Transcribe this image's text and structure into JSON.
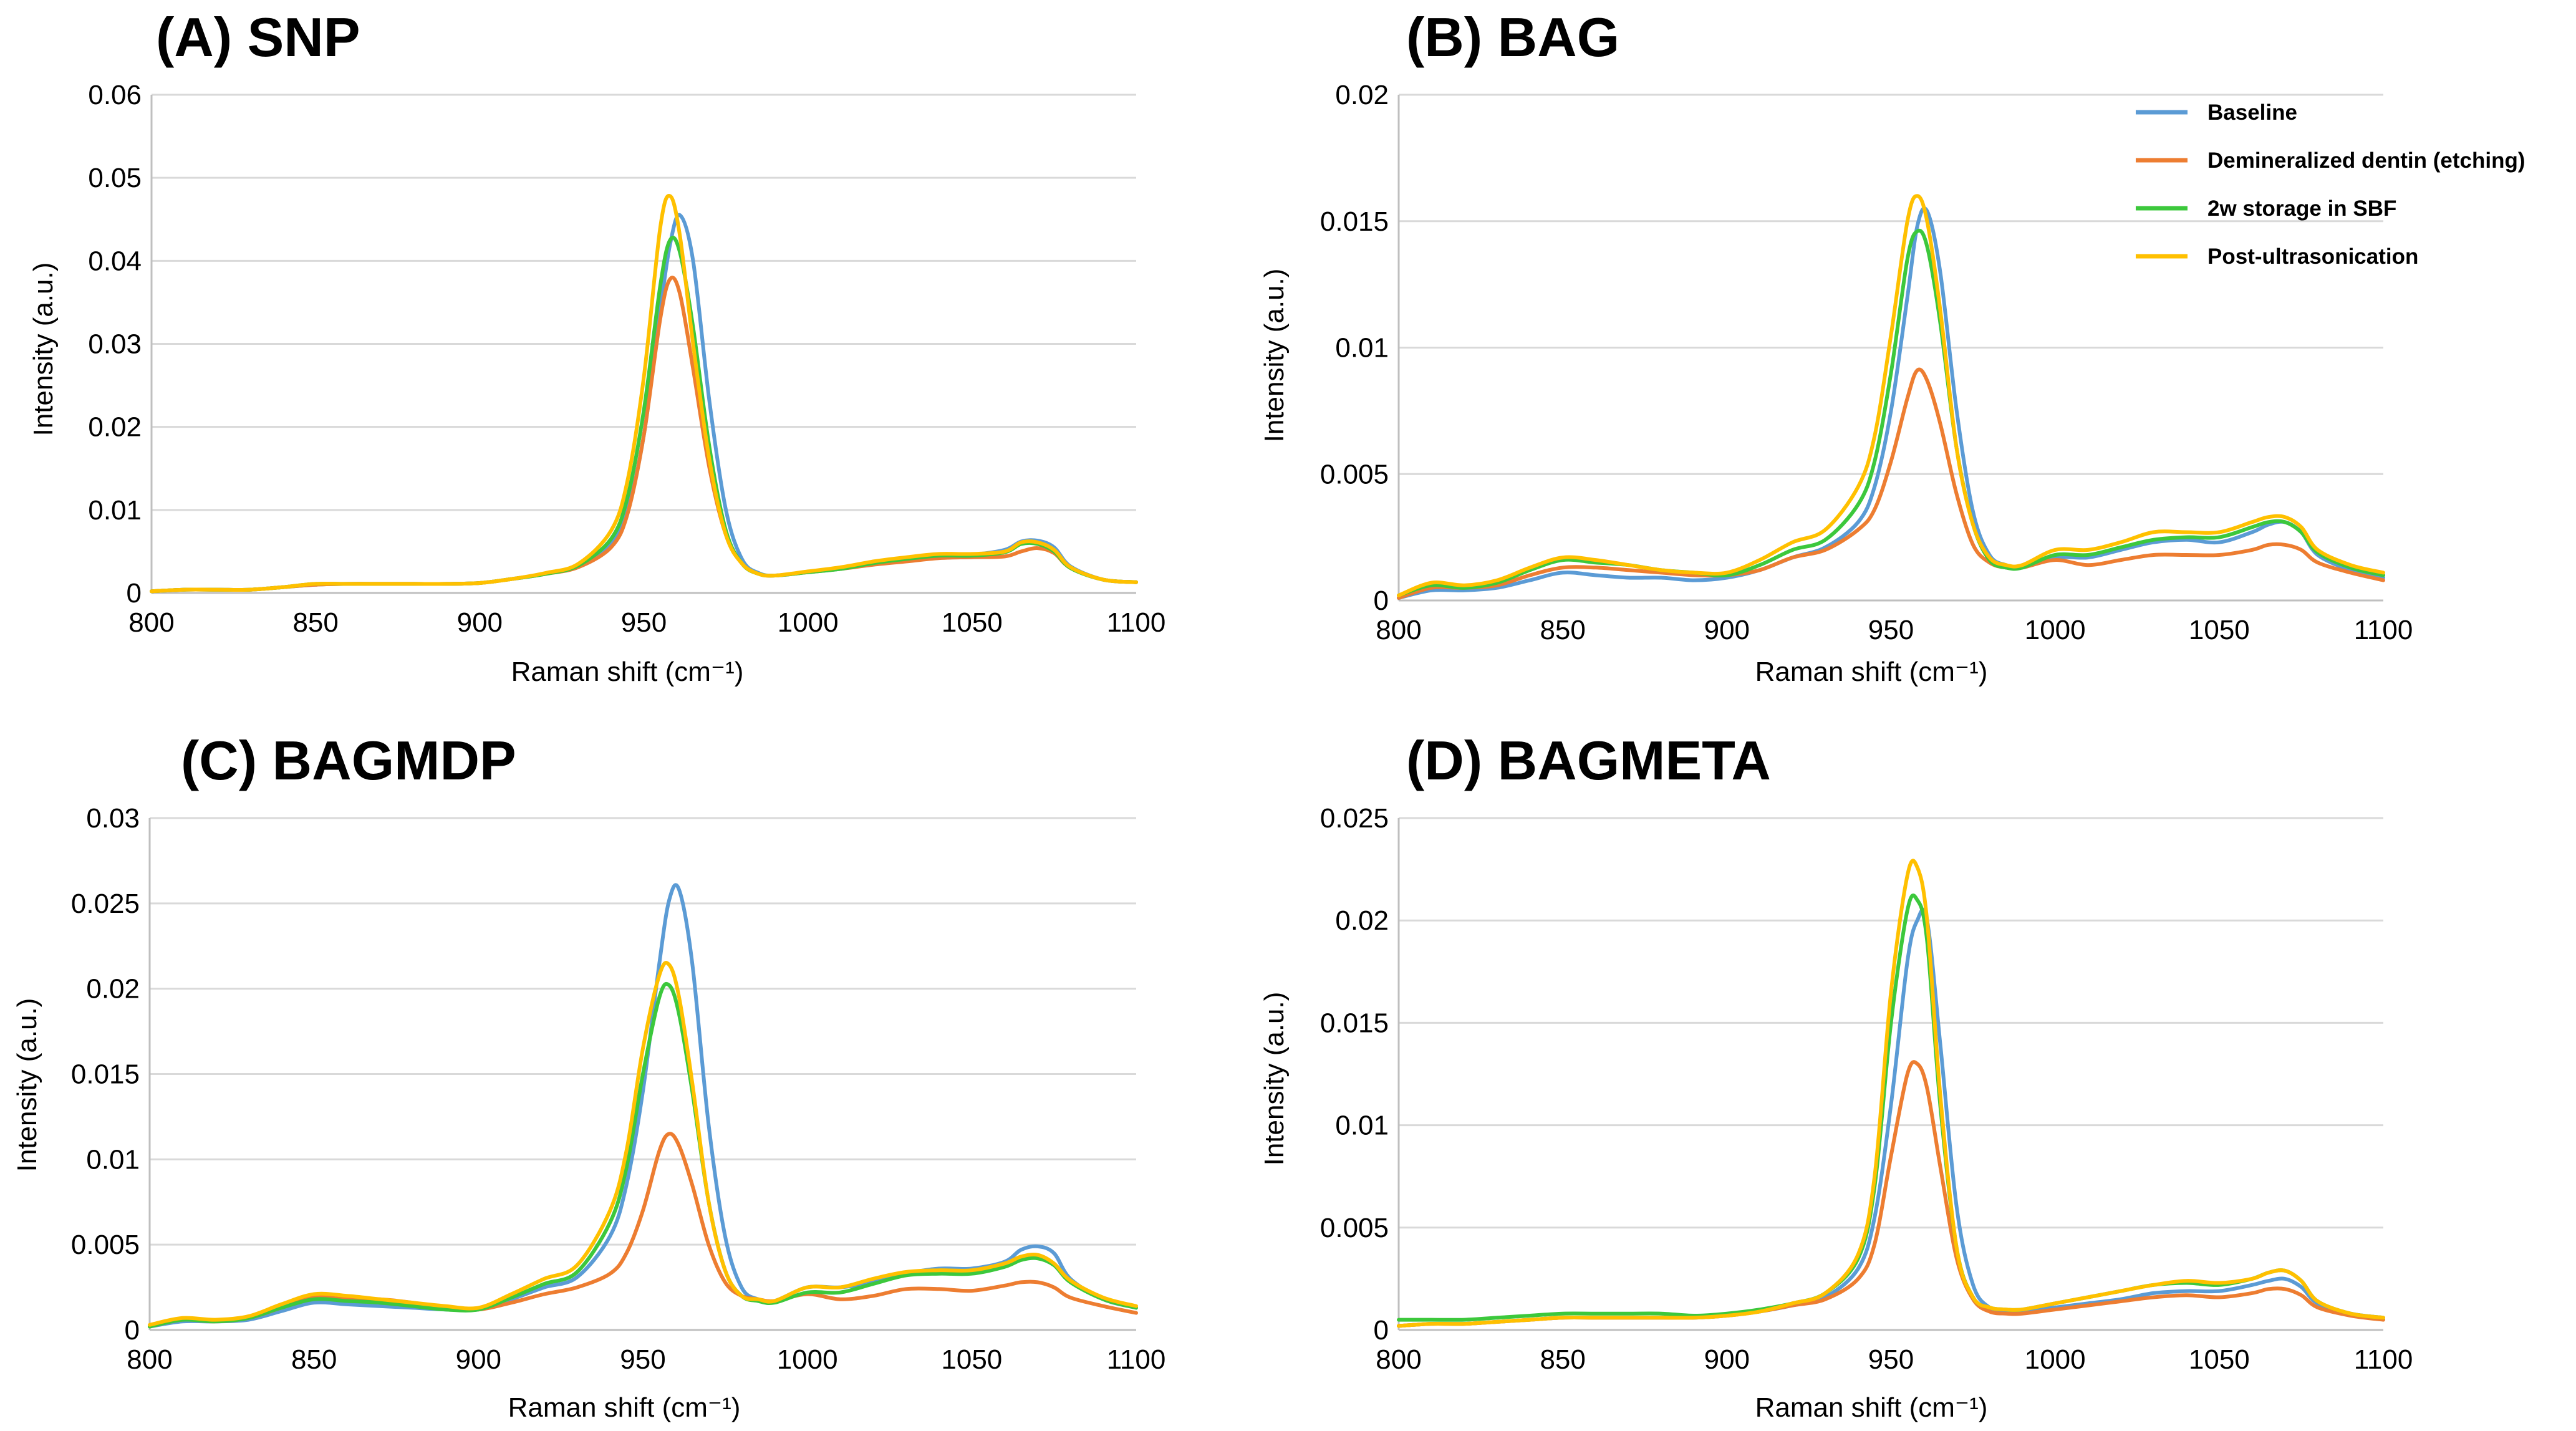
{
  "colors": {
    "baseline": "#5b9bd5",
    "demineralized": "#ed7d31",
    "sbf": "#3cc83c",
    "ultrasonication": "#ffc000"
  },
  "legend": {
    "entries": [
      {
        "label": "Baseline",
        "color": "#5b9bd5"
      },
      {
        "label": "Demineralized dentin (etching)",
        "color": "#ed7d31"
      },
      {
        "label": "2w storage in SBF",
        "color": "#3cc83c"
      },
      {
        "label": "Post-ultrasonication",
        "color": "#ffc000"
      }
    ]
  },
  "chart_data": [
    {
      "type": "line",
      "title": "(A) SNP",
      "xlabel": "Raman shift (cm⁻¹)",
      "ylabel": "Intensity (a.u.)",
      "xlim": [
        800,
        1100
      ],
      "ylim": [
        0,
        0.06
      ],
      "x_ticks": [
        "800",
        "850",
        "900",
        "950",
        "1000",
        "1050",
        "1100"
      ],
      "y_ticks": [
        "0",
        "0.01",
        "0.02",
        "0.03",
        "0.04",
        "0.05",
        "0.06"
      ],
      "grid": true,
      "x": [
        800,
        810,
        820,
        830,
        840,
        850,
        860,
        870,
        880,
        890,
        900,
        910,
        920,
        930,
        940,
        945,
        950,
        955,
        958,
        961,
        965,
        970,
        975,
        980,
        985,
        990,
        1000,
        1010,
        1020,
        1030,
        1040,
        1050,
        1060,
        1065,
        1070,
        1075,
        1080,
        1090,
        1100
      ],
      "series": [
        {
          "name": "Baseline",
          "values": [
            0.0002,
            0.0004,
            0.0004,
            0.0004,
            0.0007,
            0.001,
            0.0011,
            0.0011,
            0.0011,
            0.0011,
            0.0012,
            0.0017,
            0.0023,
            0.0032,
            0.006,
            0.01,
            0.019,
            0.034,
            0.042,
            0.0455,
            0.04,
            0.023,
            0.01,
            0.004,
            0.0024,
            0.0021,
            0.0025,
            0.0029,
            0.0035,
            0.004,
            0.0044,
            0.0046,
            0.0052,
            0.0062,
            0.0063,
            0.0055,
            0.0032,
            0.0016,
            0.0013
          ]
        },
        {
          "name": "Demineralized dentin (etching)",
          "values": [
            0.0002,
            0.0004,
            0.0004,
            0.0004,
            0.0007,
            0.001,
            0.0011,
            0.0011,
            0.0011,
            0.0011,
            0.0012,
            0.0017,
            0.0023,
            0.0031,
            0.0055,
            0.0095,
            0.019,
            0.033,
            0.0378,
            0.036,
            0.027,
            0.015,
            0.007,
            0.0035,
            0.0023,
            0.0021,
            0.0025,
            0.0029,
            0.0034,
            0.0038,
            0.0042,
            0.0043,
            0.0044,
            0.005,
            0.0054,
            0.0048,
            0.003,
            0.0016,
            0.0013
          ]
        },
        {
          "name": "2w storage in SBF",
          "values": [
            0.0002,
            0.0004,
            0.0004,
            0.0004,
            0.0007,
            0.0011,
            0.0011,
            0.0011,
            0.0011,
            0.0011,
            0.0012,
            0.0017,
            0.0023,
            0.0033,
            0.0065,
            0.0115,
            0.022,
            0.037,
            0.0425,
            0.041,
            0.032,
            0.0175,
            0.0075,
            0.0035,
            0.0023,
            0.0021,
            0.0025,
            0.0029,
            0.0036,
            0.0041,
            0.0045,
            0.0045,
            0.0049,
            0.0059,
            0.0059,
            0.005,
            0.003,
            0.0016,
            0.0013
          ]
        },
        {
          "name": "Post-ultrasonication",
          "values": [
            0.0002,
            0.0004,
            0.0004,
            0.0004,
            0.0007,
            0.0011,
            0.0011,
            0.0011,
            0.0011,
            0.0011,
            0.0012,
            0.0017,
            0.0024,
            0.0035,
            0.0075,
            0.0135,
            0.026,
            0.044,
            0.0478,
            0.043,
            0.03,
            0.016,
            0.007,
            0.0035,
            0.0023,
            0.0021,
            0.0026,
            0.0031,
            0.0038,
            0.0043,
            0.0047,
            0.0047,
            0.005,
            0.0061,
            0.0061,
            0.0052,
            0.0031,
            0.0016,
            0.0013
          ]
        }
      ]
    },
    {
      "type": "line",
      "title": "(B) BAG",
      "xlabel": "Raman shift (cm⁻¹)",
      "ylabel": "Intensity (a.u.)",
      "xlim": [
        800,
        1100
      ],
      "ylim": [
        0,
        0.02
      ],
      "x_ticks": [
        "800",
        "850",
        "900",
        "950",
        "1000",
        "1050",
        "1100"
      ],
      "y_ticks": [
        "0",
        "0.005",
        "0.01",
        "0.015",
        "0.02"
      ],
      "grid": true,
      "legend_position": "top-right",
      "x": [
        800,
        810,
        820,
        830,
        840,
        850,
        860,
        870,
        880,
        890,
        900,
        910,
        920,
        930,
        940,
        945,
        950,
        955,
        958,
        961,
        965,
        970,
        975,
        980,
        985,
        990,
        1000,
        1010,
        1020,
        1030,
        1040,
        1050,
        1060,
        1065,
        1070,
        1075,
        1080,
        1090,
        1100
      ],
      "series": [
        {
          "name": "Baseline",
          "values": [
            0.0001,
            0.0004,
            0.0004,
            0.0005,
            0.0008,
            0.0011,
            0.001,
            0.0009,
            0.0009,
            0.0008,
            0.0009,
            0.0012,
            0.0017,
            0.0021,
            0.0031,
            0.0045,
            0.0075,
            0.012,
            0.0148,
            0.0154,
            0.013,
            0.0075,
            0.0035,
            0.0018,
            0.0014,
            0.0013,
            0.0017,
            0.0017,
            0.002,
            0.0023,
            0.0024,
            0.0023,
            0.0027,
            0.003,
            0.0031,
            0.0027,
            0.0018,
            0.0012,
            0.0009
          ]
        },
        {
          "name": "Demineralized dentin (etching)",
          "values": [
            0.0001,
            0.0005,
            0.0005,
            0.0006,
            0.001,
            0.0013,
            0.0013,
            0.0012,
            0.0011,
            0.001,
            0.001,
            0.0012,
            0.0017,
            0.002,
            0.0028,
            0.0036,
            0.0055,
            0.008,
            0.0091,
            0.0087,
            0.007,
            0.0042,
            0.0022,
            0.0015,
            0.0013,
            0.0013,
            0.0016,
            0.0014,
            0.0016,
            0.0018,
            0.0018,
            0.0018,
            0.002,
            0.0022,
            0.0022,
            0.002,
            0.0015,
            0.0011,
            0.0008
          ]
        },
        {
          "name": "2w storage in SBF",
          "values": [
            0.0002,
            0.0006,
            0.0005,
            0.0007,
            0.0012,
            0.0016,
            0.0015,
            0.0014,
            0.0012,
            0.0011,
            0.001,
            0.0014,
            0.002,
            0.0024,
            0.0038,
            0.0055,
            0.009,
            0.0135,
            0.0146,
            0.014,
            0.011,
            0.006,
            0.003,
            0.0016,
            0.0013,
            0.0013,
            0.0018,
            0.0018,
            0.0021,
            0.0024,
            0.0025,
            0.0025,
            0.0029,
            0.0031,
            0.0031,
            0.0027,
            0.0019,
            0.0013,
            0.001
          ]
        },
        {
          "name": "Post-ultrasonication",
          "values": [
            0.0002,
            0.0007,
            0.0006,
            0.0008,
            0.0013,
            0.0017,
            0.0016,
            0.0014,
            0.0012,
            0.0011,
            0.0011,
            0.0016,
            0.0023,
            0.0028,
            0.0045,
            0.0065,
            0.0105,
            0.015,
            0.016,
            0.015,
            0.0115,
            0.006,
            0.003,
            0.0017,
            0.0014,
            0.0014,
            0.002,
            0.002,
            0.0023,
            0.0027,
            0.0027,
            0.0027,
            0.0031,
            0.0033,
            0.0033,
            0.0029,
            0.002,
            0.0014,
            0.0011
          ]
        }
      ]
    },
    {
      "type": "line",
      "title": "(C) BAGMDP",
      "xlabel": "Raman shift (cm⁻¹)",
      "ylabel": "Intensity (a.u.)",
      "xlim": [
        800,
        1100
      ],
      "ylim": [
        0,
        0.03
      ],
      "x_ticks": [
        "800",
        "850",
        "900",
        "950",
        "1000",
        "1050",
        "1100"
      ],
      "y_ticks": [
        "0",
        "0.005",
        "0.01",
        "0.015",
        "0.02",
        "0.025",
        "0.03"
      ],
      "grid": true,
      "x": [
        800,
        810,
        820,
        830,
        840,
        850,
        860,
        870,
        880,
        890,
        900,
        910,
        920,
        930,
        940,
        945,
        950,
        955,
        958,
        961,
        965,
        970,
        975,
        980,
        985,
        990,
        1000,
        1010,
        1020,
        1030,
        1040,
        1050,
        1060,
        1065,
        1070,
        1075,
        1080,
        1090,
        1100
      ],
      "series": [
        {
          "name": "Baseline",
          "values": [
            0.0002,
            0.0005,
            0.0005,
            0.0006,
            0.0011,
            0.0016,
            0.0015,
            0.0014,
            0.0013,
            0.0012,
            0.0012,
            0.0018,
            0.0025,
            0.0031,
            0.0055,
            0.0085,
            0.014,
            0.0215,
            0.0252,
            0.0258,
            0.0215,
            0.012,
            0.0055,
            0.0025,
            0.0018,
            0.0017,
            0.0025,
            0.0025,
            0.0028,
            0.0033,
            0.0036,
            0.0036,
            0.004,
            0.0047,
            0.0049,
            0.0045,
            0.003,
            0.0018,
            0.0013
          ]
        },
        {
          "name": "Demineralized dentin (etching)",
          "values": [
            0.0002,
            0.0006,
            0.0005,
            0.0007,
            0.0013,
            0.0019,
            0.0018,
            0.0018,
            0.0016,
            0.0013,
            0.0012,
            0.0016,
            0.0021,
            0.0025,
            0.0033,
            0.0045,
            0.007,
            0.0105,
            0.0115,
            0.0108,
            0.0085,
            0.005,
            0.0028,
            0.002,
            0.0018,
            0.0017,
            0.0021,
            0.0018,
            0.002,
            0.0024,
            0.0024,
            0.0023,
            0.0026,
            0.0028,
            0.0028,
            0.0025,
            0.0019,
            0.0014,
            0.001
          ]
        },
        {
          "name": "2w storage in SBF",
          "values": [
            0.0002,
            0.0006,
            0.0005,
            0.0007,
            0.0013,
            0.0018,
            0.0017,
            0.0016,
            0.0014,
            0.0012,
            0.0012,
            0.0019,
            0.0027,
            0.0034,
            0.0063,
            0.0095,
            0.015,
            0.0195,
            0.0202,
            0.0185,
            0.014,
            0.0075,
            0.0035,
            0.002,
            0.0017,
            0.0016,
            0.0022,
            0.0022,
            0.0027,
            0.0032,
            0.0033,
            0.0033,
            0.0037,
            0.0041,
            0.0042,
            0.0038,
            0.0028,
            0.0018,
            0.0013
          ]
        },
        {
          "name": "Post-ultrasonication",
          "values": [
            0.0003,
            0.0007,
            0.0006,
            0.0008,
            0.0015,
            0.0021,
            0.002,
            0.0018,
            0.0016,
            0.0014,
            0.0013,
            0.0021,
            0.003,
            0.0038,
            0.007,
            0.0105,
            0.0165,
            0.0208,
            0.0214,
            0.0195,
            0.0145,
            0.0075,
            0.0035,
            0.002,
            0.0018,
            0.0017,
            0.0025,
            0.0025,
            0.003,
            0.0034,
            0.0035,
            0.0035,
            0.0039,
            0.0043,
            0.0044,
            0.0039,
            0.0029,
            0.0019,
            0.0014
          ]
        }
      ]
    },
    {
      "type": "line",
      "title": "(D) BAGMETA",
      "xlabel": "Raman shift (cm⁻¹)",
      "ylabel": "Intensity (a.u.)",
      "xlim": [
        800,
        1100
      ],
      "ylim": [
        0,
        0.025
      ],
      "x_ticks": [
        "800",
        "850",
        "900",
        "950",
        "1000",
        "1050",
        "1100"
      ],
      "y_ticks": [
        "0",
        "0.005",
        "0.01",
        "0.015",
        "0.02",
        "0.025"
      ],
      "grid": true,
      "x": [
        800,
        810,
        820,
        830,
        840,
        850,
        860,
        870,
        880,
        890,
        900,
        910,
        920,
        930,
        940,
        945,
        950,
        955,
        958,
        961,
        965,
        970,
        975,
        980,
        985,
        990,
        1000,
        1010,
        1020,
        1030,
        1040,
        1050,
        1060,
        1065,
        1070,
        1075,
        1080,
        1090,
        1100
      ],
      "series": [
        {
          "name": "Baseline",
          "values": [
            0.0002,
            0.0003,
            0.0003,
            0.0004,
            0.0005,
            0.0006,
            0.0006,
            0.0006,
            0.0006,
            0.0006,
            0.0007,
            0.0009,
            0.0012,
            0.0016,
            0.003,
            0.0055,
            0.011,
            0.018,
            0.02,
            0.02,
            0.014,
            0.006,
            0.0022,
            0.0011,
            0.0009,
            0.0009,
            0.0011,
            0.0013,
            0.0015,
            0.0018,
            0.0019,
            0.0019,
            0.0022,
            0.0024,
            0.0025,
            0.0021,
            0.0013,
            0.0008,
            0.0006
          ]
        },
        {
          "name": "Demineralized dentin (etching)",
          "values": [
            0.0002,
            0.0003,
            0.0003,
            0.0004,
            0.0005,
            0.0006,
            0.0006,
            0.0006,
            0.0006,
            0.0006,
            0.0007,
            0.0009,
            0.0012,
            0.0015,
            0.0025,
            0.0042,
            0.0085,
            0.0125,
            0.013,
            0.0118,
            0.008,
            0.0035,
            0.0015,
            0.0009,
            0.0008,
            0.0008,
            0.001,
            0.0012,
            0.0014,
            0.0016,
            0.0017,
            0.0016,
            0.0018,
            0.002,
            0.002,
            0.0017,
            0.0011,
            0.0007,
            0.0005
          ]
        },
        {
          "name": "2w storage in SBF",
          "values": [
            0.0005,
            0.0005,
            0.0005,
            0.0006,
            0.0007,
            0.0008,
            0.0008,
            0.0008,
            0.0008,
            0.0007,
            0.0008,
            0.001,
            0.0013,
            0.0018,
            0.0035,
            0.007,
            0.015,
            0.0205,
            0.021,
            0.019,
            0.011,
            0.004,
            0.0016,
            0.0011,
            0.001,
            0.001,
            0.0013,
            0.0016,
            0.0019,
            0.0022,
            0.0023,
            0.0022,
            0.0025,
            0.0028,
            0.0029,
            0.0024,
            0.0014,
            0.0008,
            0.0006
          ]
        },
        {
          "name": "Post-ultrasonication",
          "values": [
            0.0002,
            0.0003,
            0.0003,
            0.0004,
            0.0005,
            0.0006,
            0.0006,
            0.0006,
            0.0006,
            0.0006,
            0.0007,
            0.0009,
            0.0013,
            0.0018,
            0.0037,
            0.0075,
            0.0165,
            0.0222,
            0.0226,
            0.02,
            0.0115,
            0.004,
            0.0016,
            0.0011,
            0.001,
            0.001,
            0.0013,
            0.0016,
            0.0019,
            0.0022,
            0.0024,
            0.0023,
            0.0025,
            0.0028,
            0.0029,
            0.0024,
            0.0014,
            0.0008,
            0.0006
          ]
        }
      ]
    }
  ]
}
